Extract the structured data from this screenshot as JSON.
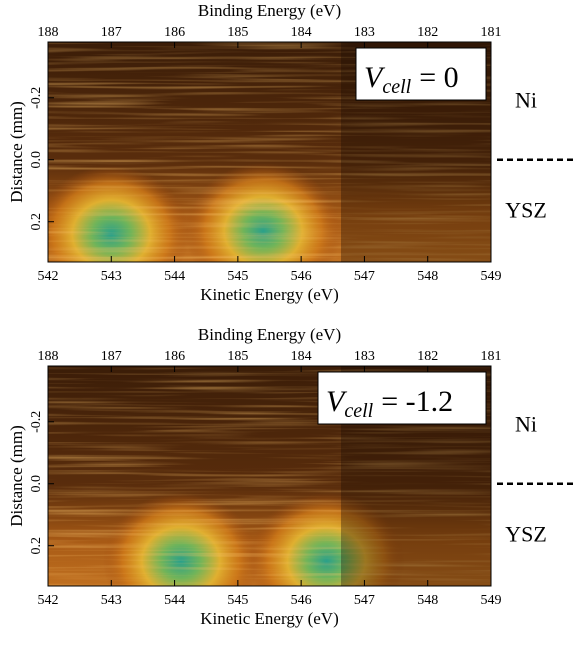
{
  "chart_data": [
    {
      "type": "heatmap",
      "xlabel": "Kinetic Energy (eV)",
      "x2label": "Binding Energy (eV)",
      "ylabel": "Distance (mm)",
      "xlim": [
        542,
        549
      ],
      "xticks": [
        542,
        543,
        544,
        545,
        546,
        547,
        548,
        549
      ],
      "x2lim": [
        188,
        181
      ],
      "x2ticks": [
        188,
        187,
        186,
        185,
        184,
        183,
        182,
        181
      ],
      "ylim": [
        -0.38,
        0.33
      ],
      "yticks": [
        -0.2,
        {
          "value": 0,
          "label": "0.0"
        },
        0.2
      ],
      "annotation": {
        "symbol": "V",
        "subscript": "cell",
        "text": "= 0"
      },
      "regions": [
        "Ni",
        "YSZ"
      ],
      "boundary": 0,
      "peaks": {
        "x": [
          543.0,
          545.4
        ],
        "y": [
          0.24,
          0.23
        ]
      }
    },
    {
      "type": "heatmap",
      "xlabel": "Kinetic Energy (eV)",
      "x2label": "Binding Energy (eV)",
      "ylabel": "Distance (mm)",
      "xlim": [
        542,
        549
      ],
      "xticks": [
        542,
        543,
        544,
        545,
        546,
        547,
        548,
        549
      ],
      "x2lim": [
        188,
        181
      ],
      "x2ticks": [
        188,
        187,
        186,
        185,
        184,
        183,
        182,
        181
      ],
      "ylim": [
        -0.38,
        0.33
      ],
      "yticks": [
        -0.2,
        {
          "value": 0,
          "label": "0.0"
        },
        0.2
      ],
      "annotation": {
        "symbol": "V",
        "subscript": "cell",
        "text": "= -1.2"
      },
      "regions": [
        "Ni",
        "YSZ"
      ],
      "boundary": 0,
      "peaks": {
        "x": [
          544.1,
          546.4
        ],
        "y": [
          0.25,
          0.25
        ]
      }
    }
  ]
}
